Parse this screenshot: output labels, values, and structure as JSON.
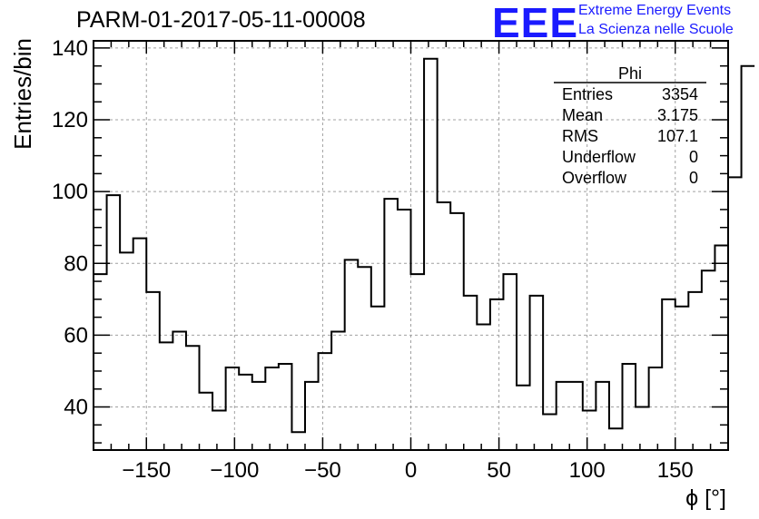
{
  "header": {
    "title": "PARM-01-2017-05-11-00008",
    "logo_text": "EEE",
    "logo_line1": "Extreme Energy Events",
    "logo_line2": "La Scienza nelle Scuole",
    "logo_color": "#1a1aff"
  },
  "stats_box": {
    "title": "Phi",
    "rows": [
      {
        "label": "Entries",
        "value": "3354"
      },
      {
        "label": "Mean",
        "value": "3.175"
      },
      {
        "label": "RMS",
        "value": "107.1"
      },
      {
        "label": "Underflow",
        "value": "0"
      },
      {
        "label": "Overflow",
        "value": "0"
      }
    ]
  },
  "chart_data": {
    "type": "histogram",
    "xlabel": "ϕ [°]",
    "ylabel": "Entries/bin",
    "xlim": [
      -180,
      180
    ],
    "ylim": [
      28,
      142
    ],
    "bin_width": 7.5,
    "grid": true,
    "x_ticks": [
      -150,
      -100,
      -50,
      0,
      50,
      100,
      150
    ],
    "x_tick_labels": [
      "−150",
      "−100",
      "−50",
      "0",
      "50",
      "100",
      "150"
    ],
    "y_ticks": [
      40,
      60,
      80,
      100,
      120,
      140
    ],
    "y_tick_labels": [
      "40",
      "60",
      "80",
      "100",
      "120",
      "140"
    ],
    "bin_edges_start": -180,
    "values": [
      77,
      99,
      83,
      87,
      72,
      58,
      61,
      57,
      44,
      39,
      51,
      49,
      47,
      51,
      52,
      33,
      47,
      55,
      61,
      81,
      79,
      68,
      98,
      95,
      77,
      137,
      97,
      94,
      71,
      63,
      70,
      77,
      46,
      71,
      38,
      47,
      47,
      39,
      47,
      34,
      52,
      40,
      51,
      70,
      68,
      72,
      78,
      85,
      104,
      135
    ]
  }
}
